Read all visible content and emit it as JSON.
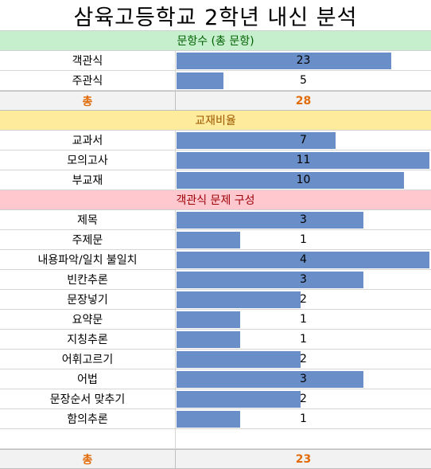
{
  "title": "삼육고등학교 2학년  내신 분석",
  "sections": {
    "questions": {
      "header": "문항수 (총 문항)",
      "rows": [
        {
          "label": "객관식",
          "value": "23",
          "ratio": 0.85
        },
        {
          "label": "주관식",
          "value": "5",
          "ratio": 0.185
        }
      ],
      "total_label": "총",
      "total_value": "28"
    },
    "materials": {
      "header": "교재비율",
      "rows": [
        {
          "label": "교과서",
          "value": "7",
          "ratio": 0.63
        },
        {
          "label": "모의고사",
          "value": "11",
          "ratio": 1.0
        },
        {
          "label": "부교재",
          "value": "10",
          "ratio": 0.9
        }
      ]
    },
    "composition": {
      "header": "객관식 문제 구성",
      "rows": [
        {
          "label": "제목",
          "value": "3",
          "ratio": 0.74
        },
        {
          "label": "주제문",
          "value": "1",
          "ratio": 0.25
        },
        {
          "label": "내용파악/일치 불일치",
          "value": "4",
          "ratio": 1.0
        },
        {
          "label": "빈칸추론",
          "value": "3",
          "ratio": 0.74
        },
        {
          "label": "문장넣기",
          "value": "2",
          "ratio": 0.49
        },
        {
          "label": "요약문",
          "value": "1",
          "ratio": 0.25
        },
        {
          "label": "지칭추론",
          "value": "1",
          "ratio": 0.25
        },
        {
          "label": "어휘고르기",
          "value": "2",
          "ratio": 0.49
        },
        {
          "label": "어법",
          "value": "3",
          "ratio": 0.74
        },
        {
          "label": "문장순서 맞추기",
          "value": "2",
          "ratio": 0.49
        },
        {
          "label": "함의추론",
          "value": "1",
          "ratio": 0.25
        }
      ],
      "total_label": "총",
      "total_value": "23"
    }
  },
  "colors": {
    "bar": "#6a8fc8",
    "section_green": "#c6efce",
    "section_yellow": "#ffeb9c",
    "section_pink": "#ffc7ce",
    "total_text": "#e26b0a"
  }
}
